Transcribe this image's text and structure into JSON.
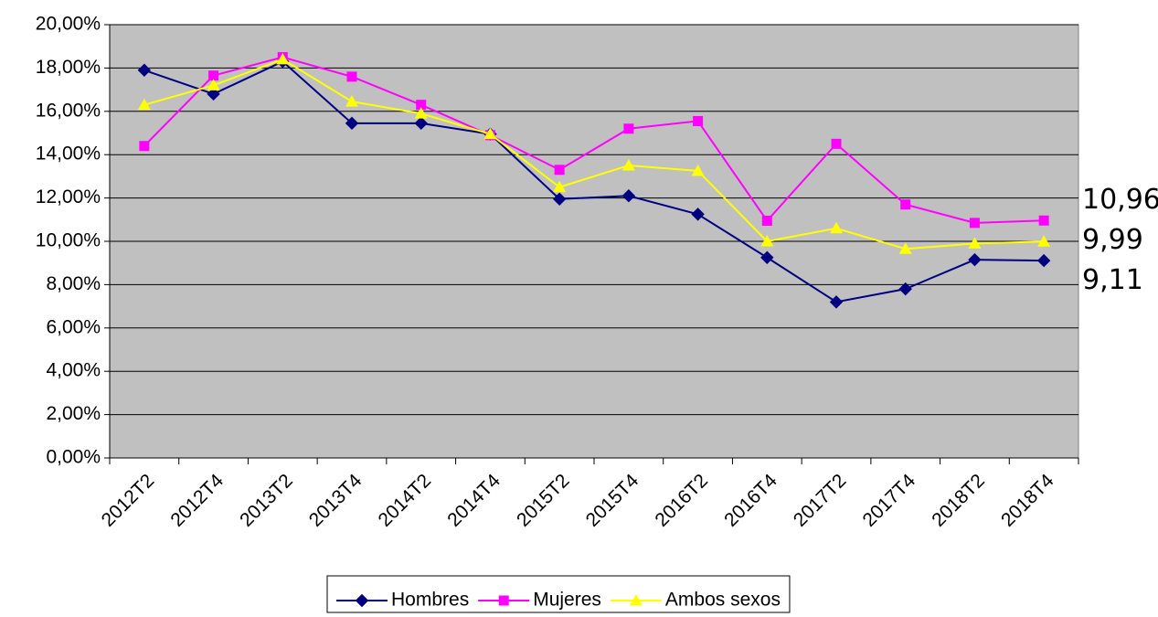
{
  "chart_data": {
    "type": "line",
    "categories": [
      "2012T2",
      "2012T4",
      "2013T2",
      "2013T4",
      "2014T2",
      "2014T4",
      "2015T2",
      "2015T4",
      "2016T2",
      "2016T4",
      "2017T2",
      "2017T4",
      "2018T2",
      "2018T4"
    ],
    "series": [
      {
        "name": "Hombres",
        "color": "#000080",
        "marker": "diamond",
        "values": [
          17.9,
          16.8,
          18.3,
          15.45,
          15.45,
          14.95,
          11.95,
          12.1,
          11.25,
          9.25,
          7.2,
          7.8,
          9.15,
          9.11
        ],
        "value_labels": [
          null,
          null,
          null,
          null,
          null,
          null,
          null,
          null,
          null,
          null,
          null,
          null,
          null,
          "9,11"
        ]
      },
      {
        "name": "Mujeres",
        "color": "#ff00ff",
        "marker": "square",
        "values": [
          14.4,
          17.65,
          18.5,
          17.6,
          16.3,
          14.9,
          13.3,
          15.2,
          15.55,
          10.95,
          14.5,
          11.7,
          10.85,
          10.96
        ],
        "value_labels": [
          null,
          null,
          null,
          null,
          null,
          null,
          null,
          null,
          null,
          null,
          null,
          null,
          null,
          "10,96"
        ]
      },
      {
        "name": "Ambos sexos",
        "color": "#ffff00",
        "marker": "triangle",
        "values": [
          16.3,
          17.2,
          18.4,
          16.45,
          15.9,
          14.95,
          12.5,
          13.5,
          13.25,
          10.0,
          10.6,
          9.65,
          9.9,
          9.99
        ],
        "value_labels": [
          null,
          null,
          null,
          null,
          null,
          null,
          null,
          null,
          null,
          null,
          null,
          null,
          null,
          "9,99"
        ]
      }
    ],
    "ylim": [
      0,
      20
    ],
    "yticks": [
      {
        "value": 0,
        "label": "0,00%"
      },
      {
        "value": 2,
        "label": "2,00%"
      },
      {
        "value": 4,
        "label": "4,00%"
      },
      {
        "value": 6,
        "label": "6,00%"
      },
      {
        "value": 8,
        "label": "8,00%"
      },
      {
        "value": 10,
        "label": "10,00%"
      },
      {
        "value": 12,
        "label": "12,00%"
      },
      {
        "value": 14,
        "label": "14,00%"
      },
      {
        "value": 16,
        "label": "16,00%"
      },
      {
        "value": 18,
        "label": "18,00%"
      },
      {
        "value": 20,
        "label": "20,00%"
      }
    ],
    "grid": true,
    "plot_background": "#c0c0c0",
    "legend": "bottom"
  }
}
